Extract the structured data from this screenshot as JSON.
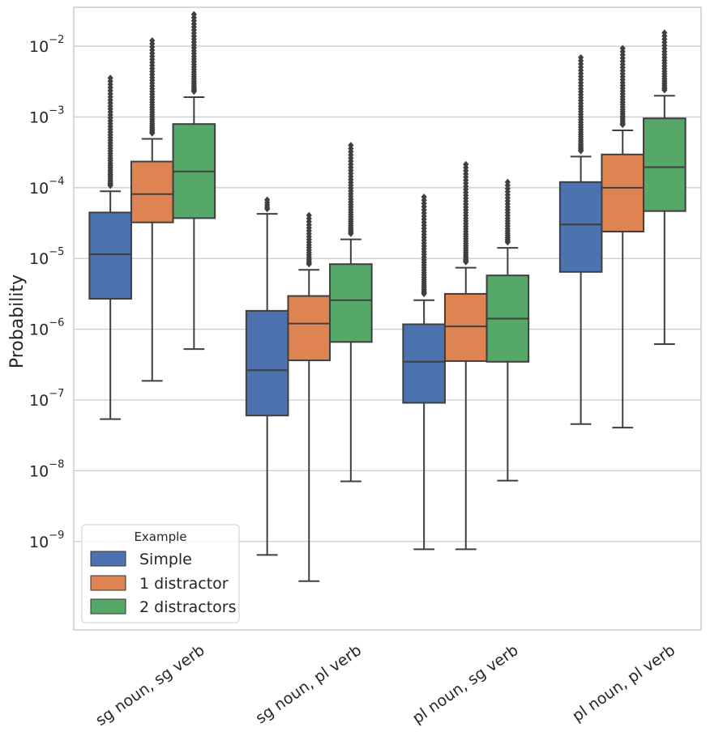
{
  "chart_data": {
    "type": "box",
    "title": "",
    "xlabel": "",
    "ylabel": "Probability",
    "yscale": "log",
    "ylim_log10": [
      -10.25,
      -1.45
    ],
    "yticks": [
      {
        "base": "10",
        "exp": "−9",
        "value": -9
      },
      {
        "base": "10",
        "exp": "−8",
        "value": -8
      },
      {
        "base": "10",
        "exp": "−7",
        "value": -7
      },
      {
        "base": "10",
        "exp": "−6",
        "value": -6
      },
      {
        "base": "10",
        "exp": "−5",
        "value": -5
      },
      {
        "base": "10",
        "exp": "−4",
        "value": -4
      },
      {
        "base": "10",
        "exp": "−3",
        "value": -3
      },
      {
        "base": "10",
        "exp": "−2",
        "value": -2
      }
    ],
    "grid": true,
    "categories": [
      "sg noun, sg verb",
      "sg noun, pl verb",
      "pl noun, sg verb",
      "pl noun, pl verb"
    ],
    "legend": {
      "title": "Example",
      "position": "lower-left",
      "entries": [
        "Simple",
        "1 distractor",
        "2 distractors"
      ]
    },
    "series": [
      {
        "name": "Simple",
        "color": "#4c72b0",
        "boxes": [
          {
            "whisker_low": -7.27,
            "q1": -5.57,
            "median": -4.94,
            "q3": -4.35,
            "whisker_high": -4.05,
            "outlier_low": -3.97,
            "outlier_high": -2.45
          },
          {
            "whisker_low": -9.19,
            "q1": -7.22,
            "median": -6.58,
            "q3": -5.74,
            "whisker_high": -4.37,
            "outlier_low": -4.3,
            "outlier_high": -4.17
          },
          {
            "whisker_low": -9.11,
            "q1": -7.04,
            "median": -6.46,
            "q3": -5.93,
            "whisker_high": -5.59,
            "outlier_low": -5.5,
            "outlier_high": -4.13
          },
          {
            "whisker_low": -7.34,
            "q1": -5.19,
            "median": -4.52,
            "q3": -3.92,
            "whisker_high": -3.56,
            "outlier_low": -3.48,
            "outlier_high": -2.16
          }
        ]
      },
      {
        "name": "1 distractor",
        "color": "#dd8452",
        "boxes": [
          {
            "whisker_low": -6.73,
            "q1": -4.49,
            "median": -4.09,
            "q3": -3.63,
            "whisker_high": -3.31,
            "outlier_low": -3.23,
            "outlier_high": -1.92
          },
          {
            "whisker_low": -9.56,
            "q1": -6.44,
            "median": -5.92,
            "q3": -5.53,
            "whisker_high": -5.16,
            "outlier_low": -5.08,
            "outlier_high": -4.39
          },
          {
            "whisker_low": -9.11,
            "q1": -6.45,
            "median": -5.96,
            "q3": -5.5,
            "whisker_high": -5.13,
            "outlier_low": -5.05,
            "outlier_high": -3.67
          },
          {
            "whisker_low": -7.39,
            "q1": -4.62,
            "median": -4.0,
            "q3": -3.53,
            "whisker_high": -3.19,
            "outlier_low": -3.11,
            "outlier_high": -2.03
          }
        ]
      },
      {
        "name": "2 distractors",
        "color": "#55a868",
        "boxes": [
          {
            "whisker_low": -6.28,
            "q1": -4.43,
            "median": -3.77,
            "q3": -3.1,
            "whisker_high": -2.72,
            "outlier_low": -2.64,
            "outlier_high": -1.55
          },
          {
            "whisker_low": -8.15,
            "q1": -6.18,
            "median": -5.59,
            "q3": -5.08,
            "whisker_high": -4.73,
            "outlier_low": -4.65,
            "outlier_high": -3.4
          },
          {
            "whisker_low": -8.14,
            "q1": -6.46,
            "median": -5.85,
            "q3": -5.24,
            "whisker_high": -4.85,
            "outlier_low": -4.77,
            "outlier_high": -3.92
          },
          {
            "whisker_low": -6.21,
            "q1": -4.33,
            "median": -3.71,
            "q3": -3.02,
            "whisker_high": -2.7,
            "outlier_low": -2.62,
            "outlier_high": -1.81
          }
        ]
      }
    ]
  }
}
